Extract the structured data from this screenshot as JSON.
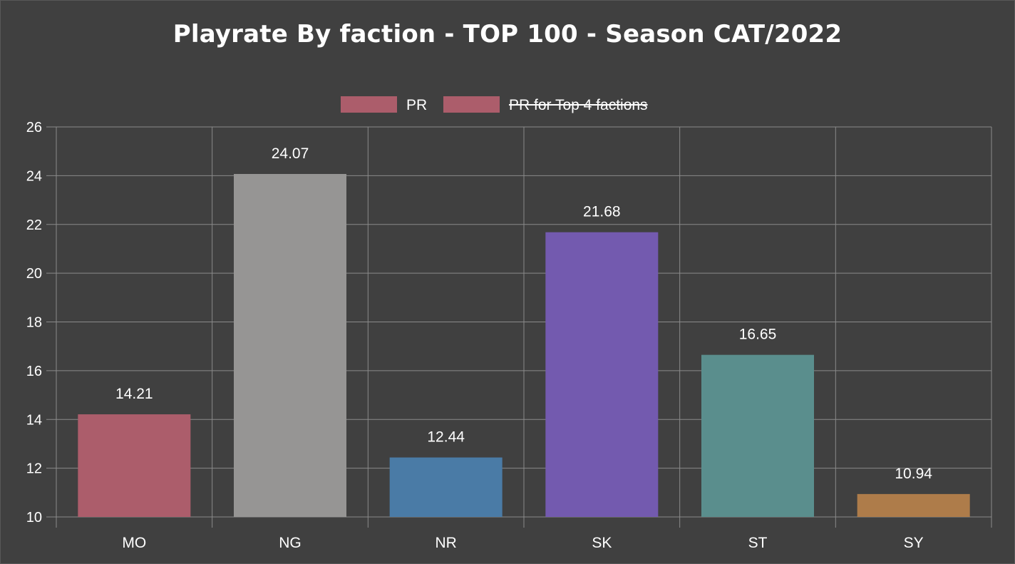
{
  "chart_data": {
    "type": "bar",
    "title": "Playrate By faction - TOP 100 - Season CAT/2022",
    "categories": [
      "MO",
      "NG",
      "NR",
      "SK",
      "ST",
      "SY"
    ],
    "series": [
      {
        "name": "PR",
        "values": [
          14.21,
          24.07,
          12.44,
          21.68,
          16.65,
          10.94
        ],
        "data_labels": [
          "14.21",
          "24.07",
          "12.44",
          "21.68",
          "16.65",
          "10.94"
        ],
        "colors": [
          "#ac5d6b",
          "#969594",
          "#4a7ba6",
          "#735aaf",
          "#5a8e8d",
          "#ae7c4a"
        ]
      },
      {
        "name": "PR for Top 4 factions",
        "hidden": true,
        "legend_color": "#ac5d6b"
      }
    ],
    "ylim": [
      10,
      26
    ],
    "yticks": [
      "10",
      "12",
      "14",
      "16",
      "18",
      "20",
      "22",
      "24",
      "26"
    ],
    "grid": true,
    "legend_position": "top"
  }
}
